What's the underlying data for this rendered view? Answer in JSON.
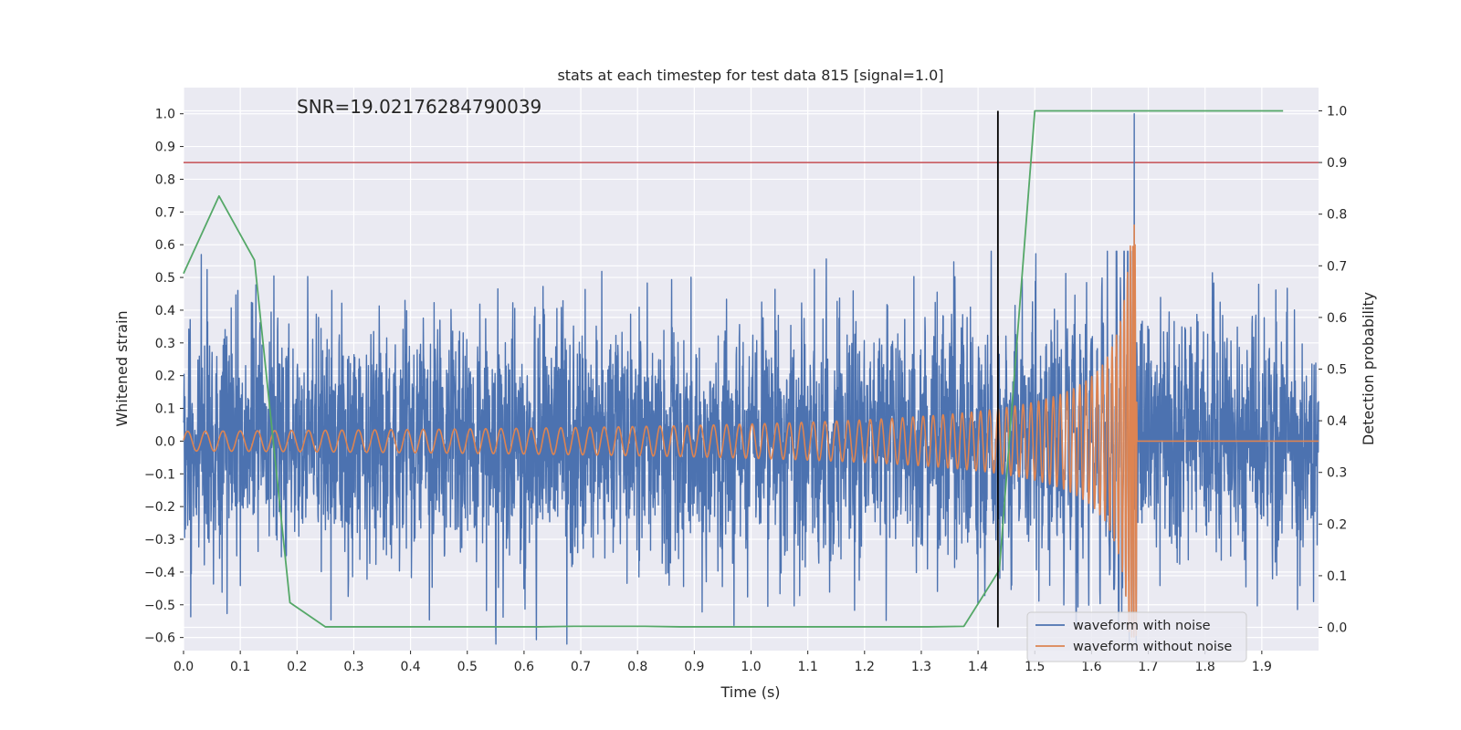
{
  "chart_data": {
    "type": "line",
    "title": "stats at each timestep for test data 815 [signal=1.0]",
    "xlabel": "Time (s)",
    "ylabel_left": "Whitened strain",
    "ylabel_right": "Detection probability",
    "annotation": "SNR=19.02176284790039",
    "xlim": [
      0.0,
      2.0
    ],
    "ylim_left": [
      -0.64,
      1.08
    ],
    "ylim_right": [
      -0.045,
      1.045
    ],
    "x_ticks": [
      0.0,
      0.1,
      0.2,
      0.3,
      0.4,
      0.5,
      0.6,
      0.7,
      0.8,
      0.9,
      1.0,
      1.1,
      1.2,
      1.3,
      1.4,
      1.5,
      1.6,
      1.7,
      1.8,
      1.9
    ],
    "x_tick_labels": [
      "0.0",
      "0.1",
      "0.2",
      "0.3",
      "0.4",
      "0.5",
      "0.6",
      "0.7",
      "0.8",
      "0.9",
      "1.0",
      "1.1",
      "1.2",
      "1.3",
      "1.4",
      "1.5",
      "1.6",
      "1.7",
      "1.8",
      "1.9"
    ],
    "y_left_ticks": [
      -0.6,
      -0.5,
      -0.4,
      -0.3,
      -0.2,
      -0.1,
      0.0,
      0.1,
      0.2,
      0.3,
      0.4,
      0.5,
      0.6,
      0.7,
      0.8,
      0.9,
      1.0
    ],
    "y_left_tick_labels": [
      "−0.6",
      "−0.5",
      "−0.4",
      "−0.3",
      "−0.2",
      "−0.1",
      "0.0",
      "0.1",
      "0.2",
      "0.3",
      "0.4",
      "0.5",
      "0.6",
      "0.7",
      "0.8",
      "0.9",
      "1.0"
    ],
    "y_right_ticks": [
      0.0,
      0.1,
      0.2,
      0.3,
      0.4,
      0.5,
      0.6,
      0.7,
      0.8,
      0.9,
      1.0
    ],
    "y_right_tick_labels": [
      "0.0",
      "0.1",
      "0.2",
      "0.3",
      "0.4",
      "0.5",
      "0.6",
      "0.7",
      "0.8",
      "0.9",
      "1.0"
    ],
    "grid": true,
    "legend": {
      "placement": "lower-right",
      "entries": [
        {
          "label": "waveform with noise",
          "color": "#4c72b0"
        },
        {
          "label": "waveform without noise",
          "color": "#dd8452"
        }
      ]
    },
    "noisy_waveform": {
      "name": "waveform with noise",
      "color": "#4c72b0",
      "axis": "left",
      "x_range": [
        0.0,
        2.0
      ],
      "typical_amplitude": 0.18,
      "peak": {
        "x": 1.675,
        "y": 1.0
      },
      "extremes_y": [
        -0.62,
        1.0
      ]
    },
    "clean_waveform": {
      "name": "waveform without noise",
      "color": "#dd8452",
      "axis": "left",
      "chirp_start_x": 0.0,
      "chirp_end_x": 1.68,
      "start_frequency_hz": 32,
      "start_amplitude": 0.03,
      "peak": {
        "x": 1.675,
        "y": 0.66
      },
      "trough_y": -0.62,
      "x_after": [
        1.68,
        2.0
      ],
      "y_after": 0.0
    },
    "detection_probability": {
      "color": "#55a868",
      "axis": "right",
      "x": [
        0.0,
        0.0625,
        0.125,
        0.1875,
        0.25,
        0.3125,
        0.375,
        0.4375,
        0.5,
        0.5625,
        0.625,
        0.6875,
        0.75,
        0.8125,
        0.875,
        0.9375,
        1.0,
        1.0625,
        1.125,
        1.1875,
        1.25,
        1.3125,
        1.375,
        1.4375,
        1.5,
        1.5625,
        1.625,
        1.6875,
        1.75,
        1.8125,
        1.875,
        1.9375
      ],
      "y": [
        0.685,
        0.835,
        0.711,
        0.048,
        0.001,
        0.001,
        0.001,
        0.001,
        0.001,
        0.001,
        0.001,
        0.002,
        0.002,
        0.002,
        0.001,
        0.001,
        0.001,
        0.001,
        0.001,
        0.001,
        0.001,
        0.001,
        0.002,
        0.111,
        1.0,
        1.0,
        1.0,
        1.0,
        1.0,
        1.0,
        1.0,
        1.0
      ]
    },
    "threshold": {
      "color": "#c44e52",
      "axis": "right",
      "y": 0.9
    },
    "detection_marker": {
      "color": "#000000",
      "x": 1.435,
      "y_from": 0.0,
      "y_to": 1.0,
      "axis": "right"
    }
  }
}
